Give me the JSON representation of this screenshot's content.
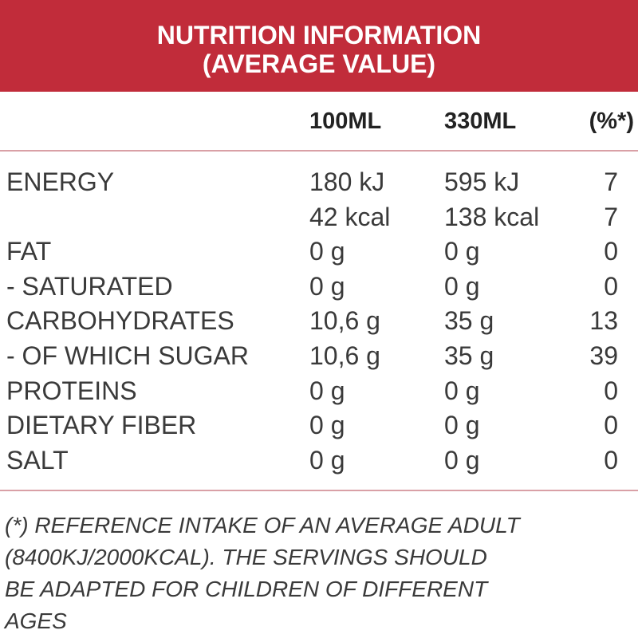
{
  "header": {
    "title_lines": [
      "NUTRITION INFORMATION",
      "(AVERAGE VALUE)"
    ]
  },
  "table": {
    "columns": [
      "100ML",
      "330ML",
      "(%*)"
    ],
    "rows": [
      {
        "label": "ENERGY",
        "cells": [
          "180 kJ",
          "595 kJ",
          7
        ]
      },
      {
        "cells": [
          "42 kcal",
          "138 kcal",
          7
        ]
      },
      {
        "label": "FAT",
        "cells": [
          "0 g",
          "0 g",
          0
        ]
      },
      {
        "label": "- SATURATED",
        "cells": [
          "0 g",
          "0 g",
          0
        ]
      },
      {
        "label": "CARBOHYDRATES",
        "cells": [
          "10,6 g",
          "35 g",
          13
        ]
      },
      {
        "label": "- OF WHICH SUGAR",
        "cells": [
          "10,6 g",
          "35 g",
          39
        ]
      },
      {
        "label": "PROTEINS",
        "cells": [
          "0 g",
          "0 g",
          0
        ]
      },
      {
        "label": "DIETARY FIBER",
        "cells": [
          "0 g",
          "0 g",
          0
        ]
      },
      {
        "label": "SALT",
        "cells": [
          "0 g",
          "0 g",
          0
        ]
      }
    ]
  },
  "footnote": {
    "lines": [
      "(*) REFERENCE INTAKE OF AN AVERAGE ADULT",
      "(8400KJ/2000KCAL). THE SERVINGS SHOULD",
      "BE ADAPTED FOR CHILDREN OF DIFFERENT",
      "AGES"
    ]
  }
}
